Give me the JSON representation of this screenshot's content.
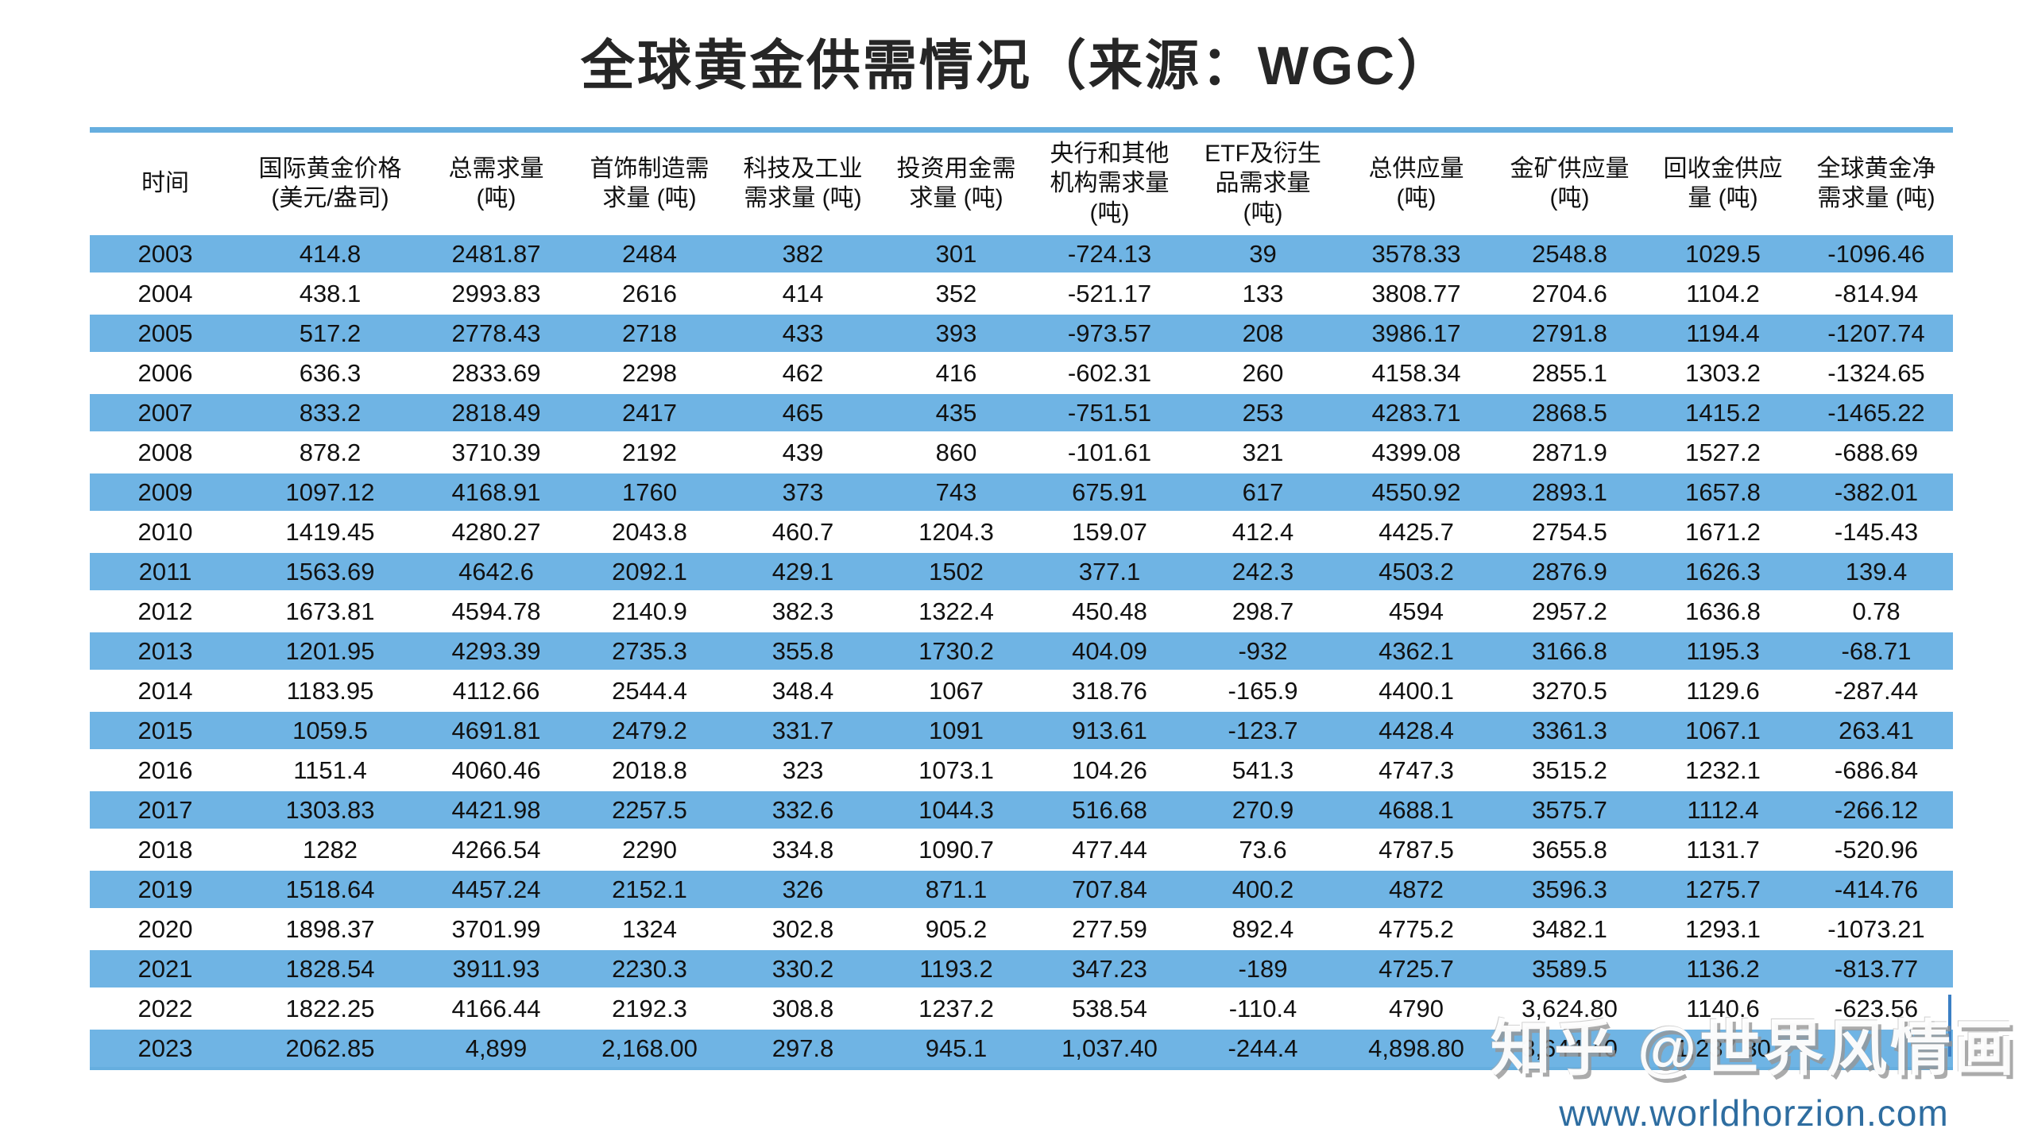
{
  "title": "全球黄金供需情况（来源：WGC）",
  "watermark": {
    "brand": "知乎 @世界风情画",
    "url": "www.worldhorzion.com"
  },
  "colors": {
    "row_stripe_blue": "#6FB4E4",
    "rule_blue": "#66AEDF",
    "watermark_url_blue": "#2E6DA0",
    "text": "#111111"
  },
  "chart_data": {
    "type": "table",
    "title": "全球黄金供需情况（来源：WGC）",
    "source_label": "来源：WGC",
    "columns": [
      "时间",
      "国际黄金价格\n(美元/盎司)",
      "总需求量\n(吨)",
      "首饰制造需\n求量 (吨)",
      "科技及工业\n需求量 (吨)",
      "投资用金需\n求量 (吨)",
      "央行和其他\n机构需求量\n(吨)",
      "ETF及衍生\n品需求量\n(吨)",
      "总供应量\n(吨)",
      "金矿供应量\n(吨)",
      "回收金供应\n量 (吨)",
      "全球黄金净\n需求量 (吨)"
    ],
    "rows": [
      [
        "2003",
        "414.8",
        "2481.87",
        "2484",
        "382",
        "301",
        "-724.13",
        "39",
        "3578.33",
        "2548.8",
        "1029.5",
        "-1096.46"
      ],
      [
        "2004",
        "438.1",
        "2993.83",
        "2616",
        "414",
        "352",
        "-521.17",
        "133",
        "3808.77",
        "2704.6",
        "1104.2",
        "-814.94"
      ],
      [
        "2005",
        "517.2",
        "2778.43",
        "2718",
        "433",
        "393",
        "-973.57",
        "208",
        "3986.17",
        "2791.8",
        "1194.4",
        "-1207.74"
      ],
      [
        "2006",
        "636.3",
        "2833.69",
        "2298",
        "462",
        "416",
        "-602.31",
        "260",
        "4158.34",
        "2855.1",
        "1303.2",
        "-1324.65"
      ],
      [
        "2007",
        "833.2",
        "2818.49",
        "2417",
        "465",
        "435",
        "-751.51",
        "253",
        "4283.71",
        "2868.5",
        "1415.2",
        "-1465.22"
      ],
      [
        "2008",
        "878.2",
        "3710.39",
        "2192",
        "439",
        "860",
        "-101.61",
        "321",
        "4399.08",
        "2871.9",
        "1527.2",
        "-688.69"
      ],
      [
        "2009",
        "1097.12",
        "4168.91",
        "1760",
        "373",
        "743",
        "675.91",
        "617",
        "4550.92",
        "2893.1",
        "1657.8",
        "-382.01"
      ],
      [
        "2010",
        "1419.45",
        "4280.27",
        "2043.8",
        "460.7",
        "1204.3",
        "159.07",
        "412.4",
        "4425.7",
        "2754.5",
        "1671.2",
        "-145.43"
      ],
      [
        "2011",
        "1563.69",
        "4642.6",
        "2092.1",
        "429.1",
        "1502",
        "377.1",
        "242.3",
        "4503.2",
        "2876.9",
        "1626.3",
        "139.4"
      ],
      [
        "2012",
        "1673.81",
        "4594.78",
        "2140.9",
        "382.3",
        "1322.4",
        "450.48",
        "298.7",
        "4594",
        "2957.2",
        "1636.8",
        "0.78"
      ],
      [
        "2013",
        "1201.95",
        "4293.39",
        "2735.3",
        "355.8",
        "1730.2",
        "404.09",
        "-932",
        "4362.1",
        "3166.8",
        "1195.3",
        "-68.71"
      ],
      [
        "2014",
        "1183.95",
        "4112.66",
        "2544.4",
        "348.4",
        "1067",
        "318.76",
        "-165.9",
        "4400.1",
        "3270.5",
        "1129.6",
        "-287.44"
      ],
      [
        "2015",
        "1059.5",
        "4691.81",
        "2479.2",
        "331.7",
        "1091",
        "913.61",
        "-123.7",
        "4428.4",
        "3361.3",
        "1067.1",
        "263.41"
      ],
      [
        "2016",
        "1151.4",
        "4060.46",
        "2018.8",
        "323",
        "1073.1",
        "104.26",
        "541.3",
        "4747.3",
        "3515.2",
        "1232.1",
        "-686.84"
      ],
      [
        "2017",
        "1303.83",
        "4421.98",
        "2257.5",
        "332.6",
        "1044.3",
        "516.68",
        "270.9",
        "4688.1",
        "3575.7",
        "1112.4",
        "-266.12"
      ],
      [
        "2018",
        "1282",
        "4266.54",
        "2290",
        "334.8",
        "1090.7",
        "477.44",
        "73.6",
        "4787.5",
        "3655.8",
        "1131.7",
        "-520.96"
      ],
      [
        "2019",
        "1518.64",
        "4457.24",
        "2152.1",
        "326",
        "871.1",
        "707.84",
        "400.2",
        "4872",
        "3596.3",
        "1275.7",
        "-414.76"
      ],
      [
        "2020",
        "1898.37",
        "3701.99",
        "1324",
        "302.8",
        "905.2",
        "277.59",
        "892.4",
        "4775.2",
        "3482.1",
        "1293.1",
        "-1073.21"
      ],
      [
        "2021",
        "1828.54",
        "3911.93",
        "2230.3",
        "330.2",
        "1193.2",
        "347.23",
        "-189",
        "4725.7",
        "3589.5",
        "1136.2",
        "-813.77"
      ],
      [
        "2022",
        "1822.25",
        "4166.44",
        "2192.3",
        "308.8",
        "1237.2",
        "538.54",
        "-110.4",
        "4790",
        "3,624.80",
        "1140.6",
        "-623.56"
      ],
      [
        "2023",
        "2062.85",
        "4,899",
        "2,168.00",
        "297.8",
        "945.1",
        "1,037.40",
        "-244.4",
        "4,898.80",
        "3,644.40",
        "1,237.30",
        ""
      ]
    ],
    "layout": {
      "stripe_rule": "odd years (2003, 2005, ...) have blue row background; even years white",
      "grid": "off",
      "last_cell_2023_net_demand": "obscured by watermark"
    }
  }
}
